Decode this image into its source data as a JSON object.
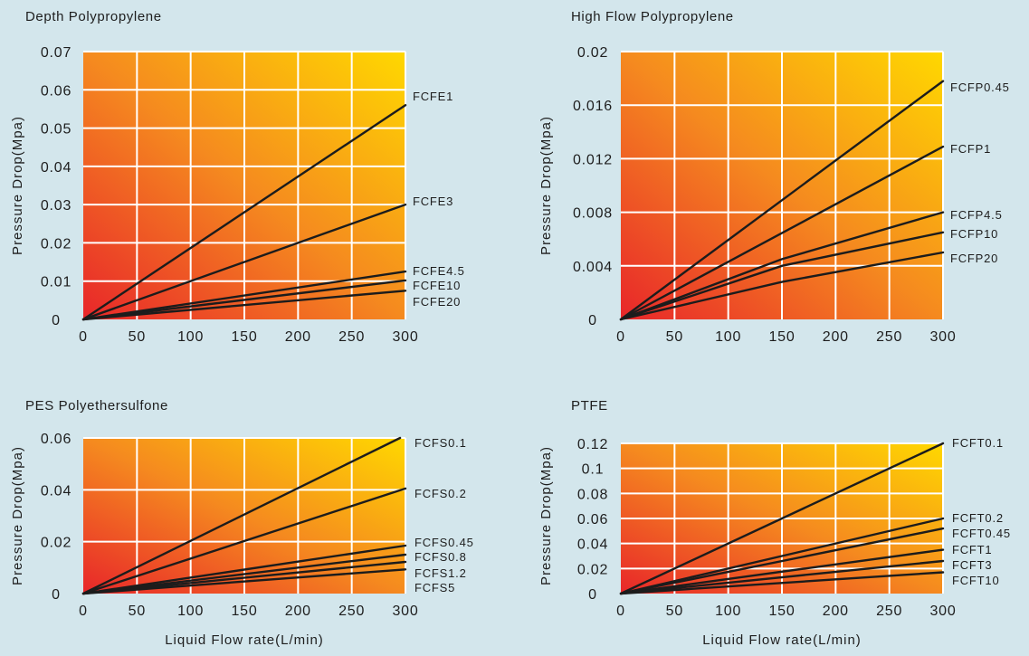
{
  "charts": [
    {
      "title": "Depth Polypropylene",
      "ylabel_words": [
        "Pressure",
        "Drop(Mpa)"
      ],
      "xlabel": "",
      "xticks": [
        "0",
        "50",
        "100",
        "150",
        "200",
        "250",
        "300"
      ],
      "yticks": [
        "0",
        "0.01",
        "0.02",
        "0.03",
        "0.04",
        "0.05",
        "0.06",
        "0.07"
      ],
      "series_labels": [
        "FCFE1",
        "FCFE3",
        "FCFE4.5",
        "FCFE10",
        "FCFE20"
      ]
    },
    {
      "title": "High Flow Polypropylene",
      "ylabel_words": [
        "Pressure",
        "Drop(Mpa)"
      ],
      "xlabel": "",
      "xticks": [
        "0",
        "50",
        "100",
        "150",
        "200",
        "250",
        "300"
      ],
      "yticks": [
        "0",
        "0.004",
        "0.008",
        "0.012",
        "0.016",
        "0.02"
      ],
      "series_labels": [
        "FCFP0.45",
        "FCFP1",
        "FCFP4.5",
        "FCFP10",
        "FCFP20"
      ]
    },
    {
      "title": "PES Polyethersulfone",
      "ylabel_words": [
        "Pressure",
        "Drop(Mpa)"
      ],
      "xlabel": "Liquid Flow rate(L/min)",
      "xticks": [
        "0",
        "50",
        "100",
        "150",
        "200",
        "250",
        "300"
      ],
      "yticks": [
        "0",
        "0.02",
        "0.04",
        "0.06"
      ],
      "series_labels": [
        "FCFS0.1",
        "FCFS0.2",
        "FCFS0.45",
        "FCFS0.8",
        "FCFS1.2",
        "FCFS5"
      ]
    },
    {
      "title": "PTFE",
      "ylabel_words": [
        "Pressure",
        "Drop(Mpa)"
      ],
      "xlabel": "Liquid Flow rate(L/min)",
      "xticks": [
        "0",
        "50",
        "100",
        "150",
        "200",
        "250",
        "300"
      ],
      "yticks": [
        "0",
        "0.02",
        "0.04",
        "0.06",
        "0.08",
        "0.1",
        "0.12"
      ],
      "series_labels": [
        "FCFT0.1",
        "FCFT0.2",
        "FCFT0.45",
        "FCFT1",
        "FCFT3",
        "FCFT10"
      ]
    }
  ],
  "colors": {
    "gradient_low": "#e8262a",
    "gradient_high": "#ffd800",
    "line": "#1c1c1c",
    "background": "#d3e6ec",
    "grid": "#ffffff"
  },
  "chart_data": [
    {
      "type": "line",
      "title": "Depth Polypropylene",
      "xlabel": "",
      "ylabel": "Pressure Drop(Mpa)",
      "xlim": [
        0,
        300
      ],
      "ylim": [
        0,
        0.07
      ],
      "grid": true,
      "series": [
        {
          "name": "FCFE1",
          "x": [
            0,
            300
          ],
          "values": [
            0,
            0.056
          ]
        },
        {
          "name": "FCFE3",
          "x": [
            0,
            300
          ],
          "values": [
            0,
            0.03
          ]
        },
        {
          "name": "FCFE4.5",
          "x": [
            0,
            300
          ],
          "values": [
            0,
            0.0125
          ]
        },
        {
          "name": "FCFE10",
          "x": [
            0,
            300
          ],
          "values": [
            0,
            0.0102
          ]
        },
        {
          "name": "FCFE20",
          "x": [
            0,
            300
          ],
          "values": [
            0,
            0.0075
          ]
        }
      ]
    },
    {
      "type": "line",
      "title": "High Flow Polypropylene",
      "xlabel": "",
      "ylabel": "Pressure Drop(Mpa)",
      "xlim": [
        0,
        300
      ],
      "ylim": [
        0,
        0.02
      ],
      "grid": true,
      "series": [
        {
          "name": "FCFP0.45",
          "x": [
            0,
            300
          ],
          "values": [
            0,
            0.0178
          ]
        },
        {
          "name": "FCFP1",
          "x": [
            0,
            300
          ],
          "values": [
            0,
            0.0129
          ]
        },
        {
          "name": "FCFP4.5",
          "x": [
            0,
            150,
            300
          ],
          "values": [
            0,
            0.0045,
            0.008
          ]
        },
        {
          "name": "FCFP10",
          "x": [
            0,
            150,
            300
          ],
          "values": [
            0,
            0.004,
            0.0065
          ]
        },
        {
          "name": "FCFP20",
          "x": [
            0,
            150,
            300
          ],
          "values": [
            0,
            0.0028,
            0.005
          ]
        }
      ]
    },
    {
      "type": "line",
      "title": "PES Polyethersulfone",
      "xlabel": "Liquid Flow rate(L/min)",
      "ylabel": "Pressure Drop(Mpa)",
      "xlim": [
        0,
        300
      ],
      "ylim": [
        0,
        0.06
      ],
      "grid": true,
      "series": [
        {
          "name": "FCFS0.1",
          "x": [
            0,
            295
          ],
          "values": [
            0,
            0.06
          ]
        },
        {
          "name": "FCFS0.2",
          "x": [
            0,
            300
          ],
          "values": [
            0,
            0.0405
          ]
        },
        {
          "name": "FCFS0.45",
          "x": [
            0,
            300
          ],
          "values": [
            0,
            0.0185
          ]
        },
        {
          "name": "FCFS0.8",
          "x": [
            0,
            300
          ],
          "values": [
            0,
            0.015
          ]
        },
        {
          "name": "FCFS1.2",
          "x": [
            0,
            300
          ],
          "values": [
            0,
            0.0122
          ]
        },
        {
          "name": "FCFS5",
          "x": [
            0,
            300
          ],
          "values": [
            0,
            0.0093
          ]
        }
      ]
    },
    {
      "type": "line",
      "title": "PTFE",
      "xlabel": "Liquid Flow rate(L/min)",
      "ylabel": "Pressure Drop(Mpa)",
      "xlim": [
        0,
        300
      ],
      "ylim": [
        0,
        0.12
      ],
      "grid": true,
      "series": [
        {
          "name": "FCFT0.1",
          "x": [
            0,
            300
          ],
          "values": [
            0,
            0.12
          ]
        },
        {
          "name": "FCFT0.2",
          "x": [
            0,
            300
          ],
          "values": [
            0,
            0.06
          ]
        },
        {
          "name": "FCFT0.45",
          "x": [
            0,
            300
          ],
          "values": [
            0,
            0.052
          ]
        },
        {
          "name": "FCFT1",
          "x": [
            0,
            300
          ],
          "values": [
            0,
            0.035
          ]
        },
        {
          "name": "FCFT3",
          "x": [
            0,
            300
          ],
          "values": [
            0,
            0.026
          ]
        },
        {
          "name": "FCFT10",
          "x": [
            0,
            300
          ],
          "values": [
            0,
            0.017
          ]
        }
      ]
    }
  ]
}
